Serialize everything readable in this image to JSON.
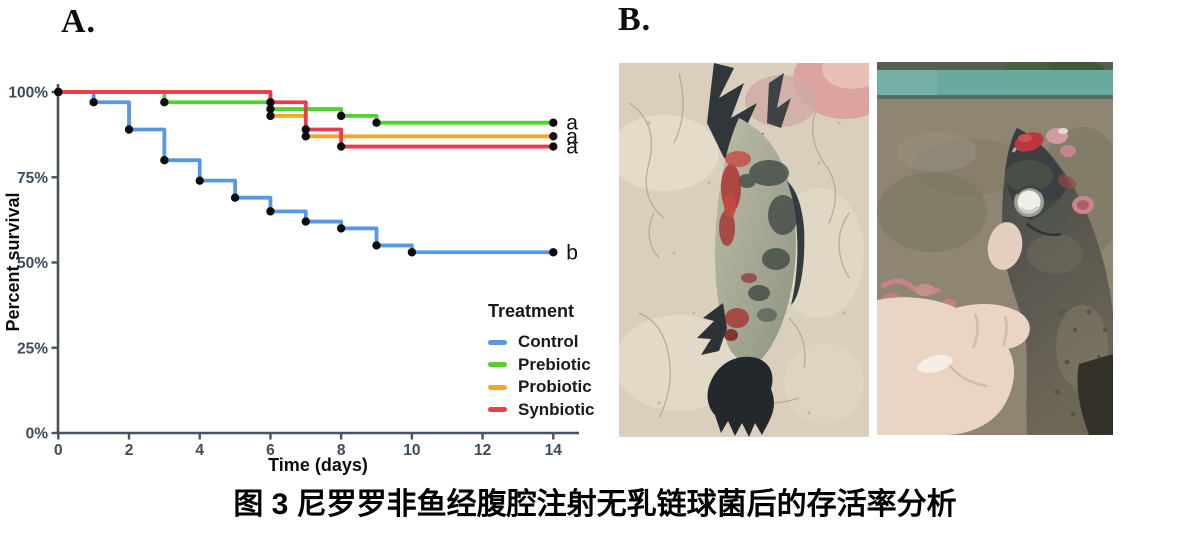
{
  "figure": {
    "panel_a_label": "A.",
    "panel_b_label": "B.",
    "caption": "图 3 尼罗罗非鱼经腹腔注射无乳链球菌后的存活率分析"
  },
  "chart_data": {
    "type": "line",
    "subtype": "kaplan-meier-step",
    "title": "",
    "xlabel": "Time (days)",
    "ylabel": "Percent survival",
    "xlim": [
      0,
      14.7
    ],
    "ylim": [
      0,
      100
    ],
    "grid": false,
    "x_ticks": [
      0,
      2,
      4,
      6,
      8,
      10,
      12,
      14
    ],
    "y_ticks": [
      {
        "value": 0,
        "label": "0%"
      },
      {
        "value": 25,
        "label": "25%"
      },
      {
        "value": 50,
        "label": "50%"
      },
      {
        "value": 75,
        "label": "75%"
      },
      {
        "value": 100,
        "label": "100%"
      }
    ],
    "legend": {
      "title": "Treatment",
      "position": "inside-lower-right"
    },
    "series": [
      {
        "name": "Control",
        "color": "#5898e2",
        "sig_label": "b",
        "steps": [
          [
            0,
            100
          ],
          [
            1,
            97
          ],
          [
            2,
            89
          ],
          [
            3,
            80
          ],
          [
            4,
            74
          ],
          [
            5,
            69
          ],
          [
            6,
            65
          ],
          [
            7,
            62
          ],
          [
            8,
            60
          ],
          [
            9,
            55
          ],
          [
            10,
            53
          ],
          [
            14,
            53
          ]
        ]
      },
      {
        "name": "Prebiotic",
        "color": "#50d230",
        "sig_label": "a",
        "steps": [
          [
            0,
            100
          ],
          [
            3,
            97
          ],
          [
            6,
            95
          ],
          [
            8,
            93
          ],
          [
            9,
            91
          ],
          [
            14,
            91
          ]
        ]
      },
      {
        "name": "Probiotic",
        "color": "#f5a81d",
        "sig_label": "a",
        "steps": [
          [
            0,
            100
          ],
          [
            6,
            93
          ],
          [
            7,
            87
          ],
          [
            14,
            87
          ]
        ]
      },
      {
        "name": "Synbiotic",
        "color": "#ee3a4c",
        "sig_label": "a",
        "steps": [
          [
            0,
            100
          ],
          [
            6,
            97
          ],
          [
            7,
            89
          ],
          [
            8,
            84
          ],
          [
            14,
            84
          ]
        ]
      }
    ],
    "marker": {
      "color": "#0d0d0d",
      "radius": 4.2
    },
    "axis_color": "#47535f",
    "tick_label_color": "#3c4c5a"
  },
  "photos": [
    {
      "id": "fish-tail-lesions",
      "description": "diseased tilapia tail with hemorrhagic skin lesions on beige textured background, fingertip at top right"
    },
    {
      "id": "fish-head-exophthalmia",
      "description": "tilapia held in hand, opaque white eye, red snout lesion, pink lesion behind eye, teal tank rim in background"
    }
  ]
}
